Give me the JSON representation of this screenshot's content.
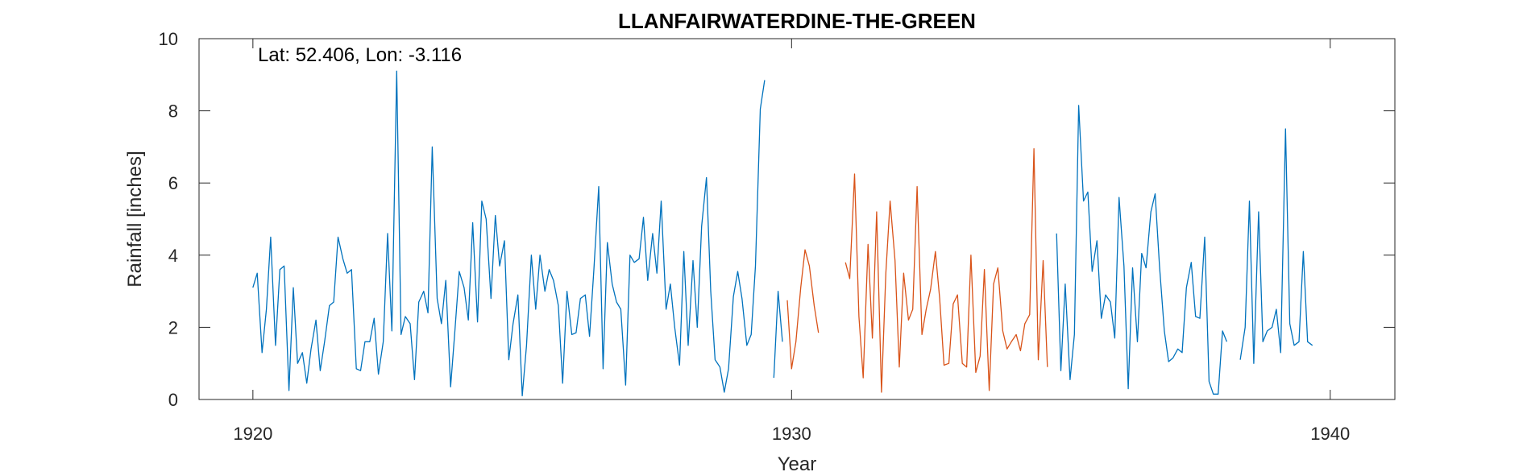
{
  "chart_data": {
    "type": "line",
    "title": "LLANFAIRWATERDINE-THE-GREEN",
    "annotation": "Lat: 52.406, Lon: -3.116",
    "xlabel": "Year",
    "ylabel": "Rainfall [inches]",
    "xlim": [
      1919,
      1941.2
    ],
    "ylim": [
      0,
      10
    ],
    "xticks": [
      1920,
      1930,
      1940
    ],
    "yticks": [
      0,
      2,
      4,
      6,
      8,
      10
    ],
    "grid": false,
    "colors": {
      "blue": "#0072BD",
      "orange": "#D95319"
    },
    "series": [
      {
        "color": "blue",
        "segments": [
          [
            [
              1920.0,
              3.1
            ],
            [
              1920.08,
              3.5
            ],
            [
              1920.17,
              1.3
            ],
            [
              1920.25,
              2.5
            ],
            [
              1920.33,
              4.5
            ],
            [
              1920.42,
              1.5
            ],
            [
              1920.5,
              3.6
            ],
            [
              1920.58,
              3.7
            ],
            [
              1920.67,
              0.25
            ],
            [
              1920.75,
              3.1
            ],
            [
              1920.83,
              1.0
            ],
            [
              1920.92,
              1.3
            ],
            [
              1921.0,
              0.45
            ],
            [
              1921.08,
              1.4
            ],
            [
              1921.17,
              2.2
            ],
            [
              1921.25,
              0.8
            ],
            [
              1921.33,
              1.6
            ],
            [
              1921.42,
              2.6
            ],
            [
              1921.5,
              2.7
            ],
            [
              1921.58,
              4.5
            ],
            [
              1921.67,
              3.9
            ],
            [
              1921.75,
              3.5
            ],
            [
              1921.83,
              3.6
            ],
            [
              1921.92,
              0.85
            ],
            [
              1922.0,
              0.8
            ],
            [
              1922.08,
              1.6
            ],
            [
              1922.17,
              1.6
            ],
            [
              1922.25,
              2.25
            ],
            [
              1922.33,
              0.7
            ],
            [
              1922.42,
              1.6
            ],
            [
              1922.5,
              4.6
            ],
            [
              1922.58,
              1.9
            ],
            [
              1922.67,
              9.1
            ],
            [
              1922.75,
              1.8
            ],
            [
              1922.83,
              2.3
            ],
            [
              1922.92,
              2.1
            ],
            [
              1923.0,
              0.55
            ],
            [
              1923.08,
              2.7
            ],
            [
              1923.17,
              3.0
            ],
            [
              1923.25,
              2.4
            ],
            [
              1923.33,
              7.0
            ],
            [
              1923.42,
              2.8
            ],
            [
              1923.5,
              2.1
            ],
            [
              1923.58,
              3.3
            ],
            [
              1923.67,
              0.35
            ],
            [
              1923.75,
              1.9
            ],
            [
              1923.83,
              3.55
            ],
            [
              1923.92,
              3.1
            ],
            [
              1924.0,
              2.2
            ],
            [
              1924.08,
              4.9
            ],
            [
              1924.17,
              2.15
            ],
            [
              1924.25,
              5.5
            ],
            [
              1924.33,
              5.0
            ],
            [
              1924.42,
              2.8
            ],
            [
              1924.5,
              5.1
            ],
            [
              1924.58,
              3.7
            ],
            [
              1924.67,
              4.4
            ],
            [
              1924.75,
              1.1
            ],
            [
              1924.83,
              2.1
            ],
            [
              1924.92,
              2.9
            ],
            [
              1925.0,
              0.1
            ],
            [
              1925.08,
              1.5
            ],
            [
              1925.17,
              4.0
            ],
            [
              1925.25,
              2.5
            ],
            [
              1925.33,
              4.0
            ],
            [
              1925.42,
              3.0
            ],
            [
              1925.5,
              3.6
            ],
            [
              1925.58,
              3.3
            ],
            [
              1925.67,
              2.6
            ],
            [
              1925.75,
              0.45
            ],
            [
              1925.83,
              3.0
            ],
            [
              1925.92,
              1.8
            ],
            [
              1926.0,
              1.85
            ],
            [
              1926.08,
              2.8
            ],
            [
              1926.17,
              2.9
            ],
            [
              1926.25,
              1.75
            ],
            [
              1926.33,
              3.6
            ],
            [
              1926.42,
              5.9
            ],
            [
              1926.5,
              0.85
            ],
            [
              1926.58,
              4.35
            ],
            [
              1926.67,
              3.2
            ],
            [
              1926.75,
              2.7
            ],
            [
              1926.83,
              2.5
            ],
            [
              1926.92,
              0.4
            ],
            [
              1927.0,
              4.0
            ],
            [
              1927.08,
              3.8
            ],
            [
              1927.17,
              3.9
            ],
            [
              1927.25,
              5.05
            ],
            [
              1927.33,
              3.3
            ],
            [
              1927.42,
              4.6
            ],
            [
              1927.5,
              3.5
            ],
            [
              1927.58,
              5.5
            ],
            [
              1927.67,
              2.5
            ],
            [
              1927.75,
              3.2
            ],
            [
              1927.83,
              2.0
            ],
            [
              1927.92,
              0.95
            ],
            [
              1928.0,
              4.1
            ],
            [
              1928.08,
              1.5
            ],
            [
              1928.17,
              3.85
            ],
            [
              1928.25,
              2.0
            ],
            [
              1928.33,
              4.8
            ],
            [
              1928.42,
              6.15
            ],
            [
              1928.5,
              3.0
            ],
            [
              1928.58,
              1.1
            ],
            [
              1928.67,
              0.9
            ],
            [
              1928.75,
              0.2
            ],
            [
              1928.83,
              0.85
            ],
            [
              1928.92,
              2.85
            ],
            [
              1929.0,
              3.55
            ],
            [
              1929.08,
              2.8
            ],
            [
              1929.17,
              1.5
            ],
            [
              1929.25,
              1.8
            ],
            [
              1929.33,
              3.7
            ],
            [
              1929.42,
              8.05
            ],
            [
              1929.5,
              8.85
            ]
          ],
          [
            [
              1929.67,
              0.6
            ],
            [
              1929.75,
              3.0
            ],
            [
              1929.83,
              1.6
            ]
          ],
          [
            [
              1934.92,
              4.6
            ],
            [
              1935.0,
              0.8
            ],
            [
              1935.08,
              3.2
            ],
            [
              1935.17,
              0.55
            ],
            [
              1935.25,
              1.8
            ],
            [
              1935.33,
              8.15
            ],
            [
              1935.42,
              5.5
            ],
            [
              1935.5,
              5.75
            ],
            [
              1935.58,
              3.55
            ],
            [
              1935.67,
              4.4
            ],
            [
              1935.75,
              2.25
            ],
            [
              1935.83,
              2.9
            ],
            [
              1935.92,
              2.7
            ],
            [
              1936.0,
              1.7
            ],
            [
              1936.08,
              5.6
            ],
            [
              1936.17,
              3.7
            ],
            [
              1936.25,
              0.3
            ],
            [
              1936.33,
              3.65
            ],
            [
              1936.42,
              1.6
            ],
            [
              1936.5,
              4.05
            ],
            [
              1936.58,
              3.65
            ],
            [
              1936.67,
              5.2
            ],
            [
              1936.75,
              5.7
            ],
            [
              1936.83,
              3.7
            ],
            [
              1936.92,
              1.9
            ],
            [
              1937.0,
              1.05
            ],
            [
              1937.08,
              1.15
            ],
            [
              1937.17,
              1.4
            ],
            [
              1937.25,
              1.3
            ],
            [
              1937.33,
              3.1
            ],
            [
              1937.42,
              3.8
            ],
            [
              1937.5,
              2.3
            ],
            [
              1937.58,
              2.25
            ],
            [
              1937.67,
              4.5
            ],
            [
              1937.75,
              0.5
            ],
            [
              1937.83,
              0.15
            ],
            [
              1937.92,
              0.15
            ],
            [
              1938.0,
              1.9
            ],
            [
              1938.08,
              1.6
            ]
          ],
          [
            [
              1938.33,
              1.1
            ],
            [
              1938.42,
              2.0
            ],
            [
              1938.5,
              5.5
            ],
            [
              1938.58,
              1.0
            ],
            [
              1938.67,
              5.2
            ],
            [
              1938.75,
              1.6
            ],
            [
              1938.83,
              1.9
            ],
            [
              1938.92,
              2.0
            ],
            [
              1939.0,
              2.5
            ],
            [
              1939.08,
              1.3
            ],
            [
              1939.17,
              7.5
            ],
            [
              1939.25,
              2.1
            ],
            [
              1939.33,
              1.5
            ],
            [
              1939.42,
              1.6
            ],
            [
              1939.5,
              4.1
            ],
            [
              1939.58,
              1.6
            ],
            [
              1939.67,
              1.5
            ]
          ]
        ]
      },
      {
        "color": "orange",
        "segments": [
          [
            [
              1929.92,
              2.75
            ],
            [
              1930.0,
              0.85
            ],
            [
              1930.08,
              1.6
            ],
            [
              1930.17,
              3.1
            ],
            [
              1930.25,
              4.15
            ],
            [
              1930.33,
              3.7
            ],
            [
              1930.42,
              2.6
            ],
            [
              1930.5,
              1.85
            ]
          ],
          [
            [
              1931.0,
              3.8
            ],
            [
              1931.08,
              3.35
            ],
            [
              1931.17,
              6.25
            ],
            [
              1931.25,
              2.3
            ],
            [
              1931.33,
              0.6
            ],
            [
              1931.42,
              4.3
            ],
            [
              1931.5,
              1.7
            ],
            [
              1931.58,
              5.2
            ],
            [
              1931.67,
              0.2
            ],
            [
              1931.75,
              3.5
            ],
            [
              1931.83,
              5.5
            ],
            [
              1931.92,
              3.85
            ],
            [
              1932.0,
              0.9
            ],
            [
              1932.08,
              3.5
            ],
            [
              1932.17,
              2.2
            ],
            [
              1932.25,
              2.5
            ],
            [
              1932.33,
              5.9
            ],
            [
              1932.42,
              1.8
            ],
            [
              1932.5,
              2.5
            ],
            [
              1932.58,
              3.05
            ],
            [
              1932.67,
              4.1
            ],
            [
              1932.75,
              2.8
            ],
            [
              1932.83,
              0.95
            ],
            [
              1932.92,
              1.0
            ],
            [
              1933.0,
              2.65
            ],
            [
              1933.08,
              2.9
            ],
            [
              1933.17,
              1.0
            ],
            [
              1933.25,
              0.9
            ],
            [
              1933.33,
              4.0
            ],
            [
              1933.42,
              0.75
            ],
            [
              1933.5,
              1.2
            ],
            [
              1933.58,
              3.6
            ],
            [
              1933.67,
              0.25
            ],
            [
              1933.75,
              3.2
            ],
            [
              1933.83,
              3.65
            ],
            [
              1933.92,
              1.9
            ],
            [
              1934.0,
              1.4
            ],
            [
              1934.08,
              1.6
            ],
            [
              1934.17,
              1.8
            ],
            [
              1934.25,
              1.35
            ],
            [
              1934.33,
              2.1
            ],
            [
              1934.42,
              2.35
            ],
            [
              1934.5,
              6.95
            ],
            [
              1934.58,
              1.1
            ],
            [
              1934.67,
              3.85
            ],
            [
              1934.75,
              0.9
            ]
          ]
        ]
      }
    ]
  }
}
